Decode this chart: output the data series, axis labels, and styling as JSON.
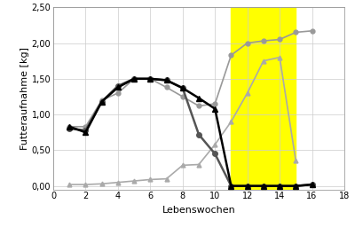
{
  "xlabel": "Lebenswochen",
  "ylabel": "Futteraufnahme [kg]",
  "ylim": [
    -0.05,
    2.5
  ],
  "xlim": [
    0,
    18
  ],
  "xticks": [
    0,
    2,
    4,
    6,
    8,
    10,
    12,
    14,
    16,
    18
  ],
  "yticks": [
    0.0,
    0.5,
    1.0,
    1.5,
    2.0,
    2.5
  ],
  "ytick_labels": [
    "0,00",
    "0,50",
    "1,00",
    "1,50",
    "2,00",
    "2,50"
  ],
  "yellow_zone": [
    11,
    15
  ],
  "kraftfutter_kontrolle_x": [
    1,
    2,
    3,
    4,
    5,
    6,
    7,
    8,
    9,
    10,
    11,
    12,
    13,
    14,
    15,
    16
  ],
  "kraftfutter_kontrolle_y": [
    0.83,
    0.83,
    1.2,
    1.3,
    1.5,
    1.5,
    1.38,
    1.25,
    1.12,
    1.15,
    1.83,
    2.0,
    2.03,
    2.05,
    2.15,
    2.17
  ],
  "kraftfutter_versuch_x": [
    1,
    2,
    3,
    4,
    5,
    6,
    7,
    8,
    9,
    10,
    11,
    12,
    13,
    14,
    15
  ],
  "kraftfutter_versuch_y": [
    0.02,
    0.02,
    0.03,
    0.05,
    0.07,
    0.09,
    0.1,
    0.29,
    0.3,
    0.58,
    0.9,
    1.3,
    1.75,
    1.8,
    0.35
  ],
  "mat_versuch_x": [
    1,
    2,
    3,
    4,
    5,
    6,
    7,
    8,
    9,
    10,
    11,
    12,
    13,
    14,
    15,
    16
  ],
  "mat_versuch_y": [
    0.83,
    0.75,
    1.18,
    1.38,
    1.5,
    1.5,
    1.48,
    1.37,
    1.23,
    1.08,
    0.0,
    0.0,
    0.0,
    0.0,
    0.0,
    0.02
  ],
  "mat_kontrolle_x": [
    1,
    2,
    3,
    4,
    5,
    6,
    7,
    8,
    9,
    10,
    11,
    12,
    13,
    14,
    15,
    16
  ],
  "mat_kontrolle_y": [
    0.8,
    0.78,
    1.18,
    1.4,
    1.5,
    1.5,
    1.48,
    1.37,
    0.72,
    0.45,
    0.0,
    0.0,
    0.0,
    0.0,
    0.0,
    0.02
  ],
  "color_kf_kontrolle": "#999999",
  "color_kf_versuch": "#aaaaaa",
  "color_mat_versuch": "#000000",
  "color_mat_kontrolle": "#555555",
  "yellow_color": "#ffff00",
  "yellow_alpha": 1.0
}
